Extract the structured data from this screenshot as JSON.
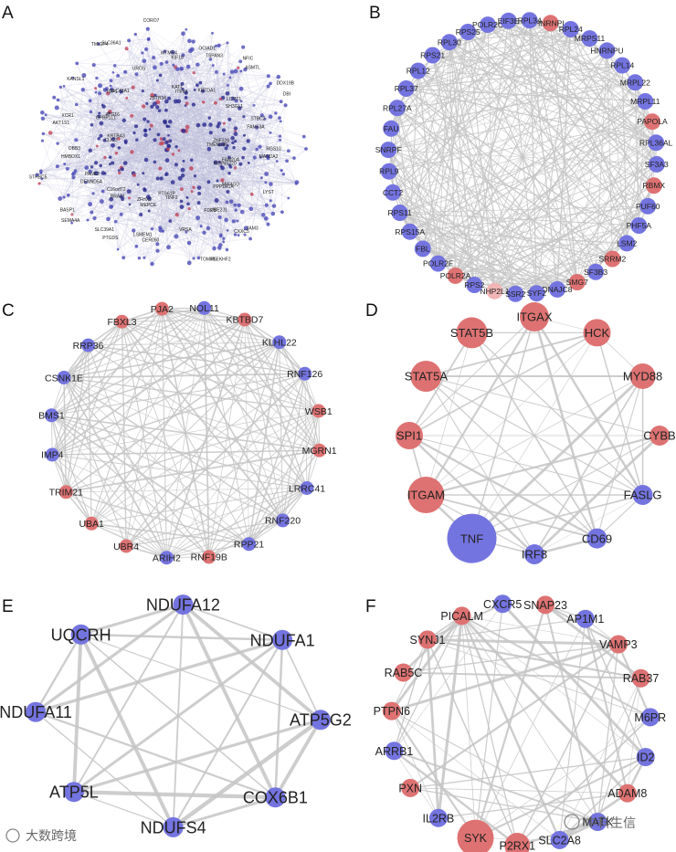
{
  "colors": {
    "blue": "#7474e0",
    "red": "#de7272",
    "edge": "#c4c4c4",
    "edge_dense": "#b7b7d8"
  },
  "panels": [
    {
      "letter": "A",
      "kind": "dense",
      "labels": [
        "TMEM149",
        "C16orf72",
        "KIF18",
        "CXXC5",
        "KRTBA3",
        "SH3GL1",
        "LSMEM1",
        "SLC36A1",
        "KIDINS220",
        "PANK2",
        "TSPAN3",
        "TOMM5",
        "ATG16",
        "FAM63A",
        "SLC39A1",
        "CORO7",
        "PPP1R1A",
        "OBB3",
        "ASMTL",
        "PTS61P",
        "SLC43A1",
        "MANDA2",
        "BASP1",
        "ITPK1",
        "FDPS",
        "XCR1",
        "DBI",
        "ZFHX2",
        "UROS",
        "LYST",
        "STRBC5",
        "KRTDA1",
        "VRSA",
        "KANSL1",
        "ZNF326",
        "BRAT1",
        "MTMR4",
        "JAM3",
        "CLIC3",
        "LCMT1",
        "CER050",
        "TMIGF4",
        "FAM20A",
        "DENND5A",
        "OCIAD1",
        "PLEKHF2",
        "GPBP1L1",
        "STBC2",
        "PTGDS",
        "ZBTB34",
        "MIF4GD",
        "HMBOX1",
        "NFIC",
        "TINF2",
        "TDP1",
        "RGS10",
        "SEMA4A",
        "KAT1",
        "UBE2J1",
        "AKT1S1",
        "DDX19B",
        "MEPCE"
      ],
      "node_count": 420,
      "edge_count": 1500
    },
    {
      "letter": "B",
      "kind": "ring",
      "nodes": [
        {
          "label": "HNRNPL",
          "c": "red"
        },
        {
          "label": "RPL24",
          "c": "blue"
        },
        {
          "label": "MRPS11",
          "c": "blue"
        },
        {
          "label": "HNRNPU",
          "c": "blue"
        },
        {
          "label": "RPL14",
          "c": "blue"
        },
        {
          "label": "MRPL22",
          "c": "blue"
        },
        {
          "label": "MRPL11",
          "c": "blue"
        },
        {
          "label": "PAPOLA",
          "c": "red"
        },
        {
          "label": "RPL36AL",
          "c": "blue"
        },
        {
          "label": "SF3A3",
          "c": "blue"
        },
        {
          "label": "RBMX",
          "c": "red"
        },
        {
          "label": "PUF60",
          "c": "blue"
        },
        {
          "label": "PHF5A",
          "c": "blue"
        },
        {
          "label": "LSM2",
          "c": "blue"
        },
        {
          "label": "SRRM2",
          "c": "red"
        },
        {
          "label": "SF3B3",
          "c": "blue"
        },
        {
          "label": "SMG7",
          "c": "red"
        },
        {
          "label": "DNAJC8",
          "c": "blue"
        },
        {
          "label": "SYF2",
          "c": "blue"
        },
        {
          "label": "SSR2",
          "c": "blue"
        },
        {
          "label": "NHP2L1",
          "c": "pink"
        },
        {
          "label": "RPS2",
          "c": "blue"
        },
        {
          "label": "POLR2A",
          "c": "red"
        },
        {
          "label": "POLR2F",
          "c": "blue"
        },
        {
          "label": "FBL",
          "c": "blue"
        },
        {
          "label": "RPS15A",
          "c": "blue"
        },
        {
          "label": "RPS11",
          "c": "blue"
        },
        {
          "label": "CCT2",
          "c": "blue"
        },
        {
          "label": "RPL9",
          "c": "blue"
        },
        {
          "label": "SNRPF",
          "c": "blue"
        },
        {
          "label": "FAU",
          "c": "blue"
        },
        {
          "label": "RPL27A",
          "c": "blue"
        },
        {
          "label": "RPL37",
          "c": "blue"
        },
        {
          "label": "RPL12",
          "c": "blue"
        },
        {
          "label": "RPS21",
          "c": "blue"
        },
        {
          "label": "RPL30",
          "c": "blue"
        },
        {
          "label": "RPS25",
          "c": "blue"
        },
        {
          "label": "POLR2C",
          "c": "blue"
        },
        {
          "label": "EIF3E",
          "c": "blue"
        },
        {
          "label": "RPL34",
          "c": "blue"
        }
      ]
    },
    {
      "letter": "C",
      "kind": "ring",
      "nodes": [
        {
          "label": "NOL11",
          "c": "blue"
        },
        {
          "label": "KBTBD7",
          "c": "red"
        },
        {
          "label": "KLHL22",
          "c": "blue"
        },
        {
          "label": "RNF126",
          "c": "blue"
        },
        {
          "label": "WSB1",
          "c": "red"
        },
        {
          "label": "MGRN1",
          "c": "red"
        },
        {
          "label": "LRRC41",
          "c": "blue"
        },
        {
          "label": "RNF220",
          "c": "blue"
        },
        {
          "label": "RPP21",
          "c": "blue"
        },
        {
          "label": "RNF19B",
          "c": "red"
        },
        {
          "label": "ARIH2",
          "c": "blue"
        },
        {
          "label": "UBR4",
          "c": "red"
        },
        {
          "label": "UBA1",
          "c": "red"
        },
        {
          "label": "TRIM21",
          "c": "red"
        },
        {
          "label": "IMP4",
          "c": "blue"
        },
        {
          "label": "BMS1",
          "c": "blue"
        },
        {
          "label": "CSNK1E",
          "c": "blue"
        },
        {
          "label": "RRP36",
          "c": "blue"
        },
        {
          "label": "FBXL3",
          "c": "red"
        },
        {
          "label": "PJA2",
          "c": "red"
        }
      ]
    },
    {
      "letter": "D",
      "kind": "ring",
      "nodes": [
        {
          "label": "ITGAX",
          "c": "red"
        },
        {
          "label": "HCK",
          "c": "red"
        },
        {
          "label": "MYD88",
          "c": "red"
        },
        {
          "label": "CYBB",
          "c": "red"
        },
        {
          "label": "FASLG",
          "c": "blue"
        },
        {
          "label": "CD69",
          "c": "blue"
        },
        {
          "label": "IRF8",
          "c": "blue"
        },
        {
          "label": "TNF",
          "c": "blue"
        },
        {
          "label": "ITGAM",
          "c": "red"
        },
        {
          "label": "SPI1",
          "c": "red"
        },
        {
          "label": "STAT5A",
          "c": "red"
        },
        {
          "label": "STAT5B",
          "c": "red"
        }
      ]
    },
    {
      "letter": "E",
      "kind": "ring",
      "nodes": [
        {
          "label": "NDUFA12",
          "c": "blue"
        },
        {
          "label": "NDUFA1",
          "c": "blue"
        },
        {
          "label": "ATP5G2",
          "c": "blue"
        },
        {
          "label": "COX6B1",
          "c": "blue"
        },
        {
          "label": "NDUFS4",
          "c": "blue"
        },
        {
          "label": "ATP5L",
          "c": "blue"
        },
        {
          "label": "NDUFA11",
          "c": "blue"
        },
        {
          "label": "UQCRH",
          "c": "blue"
        }
      ]
    },
    {
      "letter": "F",
      "kind": "ring",
      "nodes": [
        {
          "label": "CXCR5",
          "c": "blue"
        },
        {
          "label": "SNAP23",
          "c": "red"
        },
        {
          "label": "AP1M1",
          "c": "blue"
        },
        {
          "label": "VAMP3",
          "c": "red"
        },
        {
          "label": "RAB37",
          "c": "red"
        },
        {
          "label": "M6PR",
          "c": "blue"
        },
        {
          "label": "ID2",
          "c": "blue"
        },
        {
          "label": "ADAM8",
          "c": "red"
        },
        {
          "label": "MATK",
          "c": "blue"
        },
        {
          "label": "SLC2A8",
          "c": "blue"
        },
        {
          "label": "P2RX1",
          "c": "red"
        },
        {
          "label": "SYK",
          "c": "red"
        },
        {
          "label": "IL2RB",
          "c": "blue"
        },
        {
          "label": "PXN",
          "c": "red"
        },
        {
          "label": "ARRB1",
          "c": "blue"
        },
        {
          "label": "PTPN6",
          "c": "red"
        },
        {
          "label": "RAB5C",
          "c": "red"
        },
        {
          "label": "SYNJ1",
          "c": "red"
        },
        {
          "label": "PICALM",
          "c": "red"
        }
      ]
    }
  ],
  "watermark_left": "大数跨境",
  "watermark_right": "中科生信"
}
